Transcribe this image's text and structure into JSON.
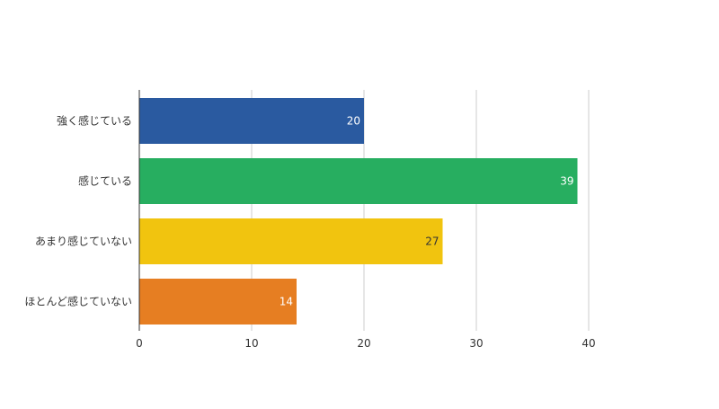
{
  "chart_data": {
    "type": "bar",
    "orientation": "horizontal",
    "categories": [
      "強く感じている",
      "感じている",
      "あまり感じていない",
      "ほとんど感じていない"
    ],
    "values": [
      20,
      39,
      27,
      14
    ],
    "colors": [
      "#2a5aa0",
      "#27ae60",
      "#f1c40f",
      "#e67e22"
    ],
    "value_label_colors": [
      "#ffffff",
      "#ffffff",
      "#333333",
      "#ffffff"
    ],
    "xlim": [
      0,
      50
    ],
    "x_ticks": [
      0,
      10,
      20,
      30,
      40
    ],
    "grid": true,
    "legend": "none"
  }
}
